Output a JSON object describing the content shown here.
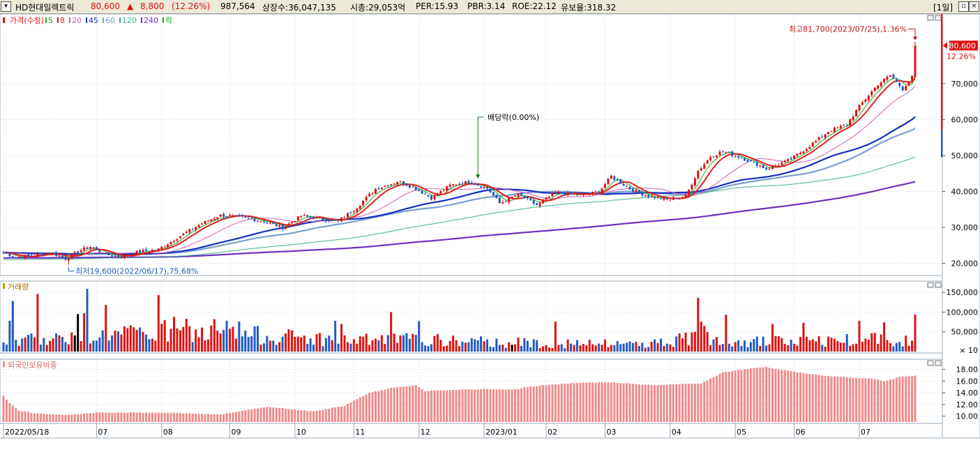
{
  "header": {
    "stock_name": "HD현대일렉트릭",
    "price": "80,600",
    "change_arrow": "▲",
    "change": "8,800",
    "change_pct": "(12.26%)",
    "volume": "987,564",
    "listed_shares": "상장수:36,047,135",
    "market_cap": "시총:29,053억",
    "per": "PER:15.93",
    "pbr": "PBR:3.14",
    "roe": "ROE:22.12",
    "reserve_ratio": "유보율:318.32",
    "period_button": "[1일]"
  },
  "colors": {
    "up": "#e01010",
    "down": "#1f5bc0",
    "ma5": "#22a022",
    "ma8": "#e02020",
    "ma20": "#d060b0",
    "ma45": "#1530c0",
    "ma60": "#7aa0d0",
    "ma120": "#40b090",
    "ma240": "#7030c0",
    "holding": "#f08a8a",
    "grid": "#c8d4e0"
  },
  "chart_data": [
    {
      "type": "candlestick",
      "panel": "price",
      "legend": [
        {
          "label": "가격(수정)",
          "color": "#e01010"
        },
        {
          "label": "5",
          "color": "#22a022"
        },
        {
          "label": "8",
          "color": "#e02020"
        },
        {
          "label": "20",
          "color": "#d060b0"
        },
        {
          "label": "45",
          "color": "#1530c0"
        },
        {
          "label": "60",
          "color": "#7aa0d0"
        },
        {
          "label": "120",
          "color": "#40b090"
        },
        {
          "label": "240",
          "color": "#7030c0"
        },
        {
          "label": "락",
          "color": "#22a022"
        }
      ],
      "ylim": [
        17000,
        89000
      ],
      "y_ticks": [
        "20,000",
        "30,000",
        "40,000",
        "50,000",
        "60,000",
        "70,000"
      ],
      "y_tick_values": [
        20000,
        30000,
        40000,
        50000,
        60000,
        70000
      ],
      "x_labels": [
        "2022/05/18",
        "07",
        "08",
        "09",
        "10",
        "11",
        "12",
        "2023/01",
        "02",
        "03",
        "04",
        "05",
        "06",
        "07"
      ],
      "x_label_index": [
        0,
        30,
        51,
        73,
        94,
        113,
        134,
        155,
        175,
        194,
        215,
        236,
        255,
        276
      ],
      "close_anchors": [
        [
          0,
          23000
        ],
        [
          4,
          21700
        ],
        [
          10,
          22200
        ],
        [
          15,
          23100
        ],
        [
          20,
          21300
        ],
        [
          25,
          23700
        ],
        [
          28,
          24600
        ],
        [
          33,
          22400
        ],
        [
          38,
          21900
        ],
        [
          44,
          23300
        ],
        [
          50,
          23900
        ],
        [
          56,
          27100
        ],
        [
          63,
          30700
        ],
        [
          70,
          33400
        ],
        [
          78,
          32700
        ],
        [
          84,
          31700
        ],
        [
          90,
          29900
        ],
        [
          96,
          33200
        ],
        [
          102,
          32400
        ],
        [
          108,
          31700
        ],
        [
          114,
          35700
        ],
        [
          120,
          40700
        ],
        [
          127,
          42800
        ],
        [
          132,
          41200
        ],
        [
          138,
          38200
        ],
        [
          144,
          41700
        ],
        [
          150,
          42700
        ],
        [
          156,
          40900
        ],
        [
          160,
          36700
        ],
        [
          166,
          39200
        ],
        [
          172,
          36200
        ],
        [
          178,
          39700
        ],
        [
          186,
          38900
        ],
        [
          192,
          39900
        ],
        [
          196,
          44200
        ],
        [
          202,
          40700
        ],
        [
          208,
          38700
        ],
        [
          214,
          37700
        ],
        [
          220,
          38700
        ],
        [
          224,
          45700
        ],
        [
          228,
          49700
        ],
        [
          232,
          51200
        ],
        [
          240,
          48700
        ],
        [
          246,
          46300
        ],
        [
          250,
          47500
        ],
        [
          254,
          49000
        ],
        [
          260,
          52700
        ],
        [
          266,
          56700
        ],
        [
          272,
          58700
        ],
        [
          276,
          63700
        ],
        [
          282,
          69800
        ],
        [
          286,
          72300
        ],
        [
          290,
          68500
        ],
        [
          293,
          71800
        ],
        [
          294,
          80600
        ]
      ],
      "volume_anchors": [
        [
          0,
          40
        ],
        [
          20,
          60
        ],
        [
          40,
          70
        ],
        [
          60,
          75
        ],
        [
          70,
          72
        ],
        [
          90,
          62
        ],
        [
          110,
          45
        ],
        [
          130,
          50
        ],
        [
          150,
          40
        ],
        [
          170,
          35
        ],
        [
          190,
          30
        ],
        [
          210,
          35
        ],
        [
          226,
          60
        ],
        [
          240,
          42
        ],
        [
          260,
          40
        ],
        [
          280,
          55
        ],
        [
          294,
          50
        ]
      ],
      "volume_spikes": [
        [
          2,
          78
        ],
        [
          3,
          128
        ],
        [
          11,
          146
        ],
        [
          24,
          95
        ],
        [
          26,
          97
        ],
        [
          27,
          159
        ],
        [
          33,
          118
        ],
        [
          50,
          143
        ],
        [
          52,
          80
        ],
        [
          55,
          88
        ],
        [
          59,
          83
        ],
        [
          68,
          82
        ],
        [
          72,
          78
        ],
        [
          76,
          76
        ],
        [
          107,
          78
        ],
        [
          109,
          70
        ],
        [
          125,
          100
        ],
        [
          134,
          77
        ],
        [
          178,
          76
        ],
        [
          224,
          136
        ],
        [
          225,
          76
        ],
        [
          226,
          65
        ],
        [
          233,
          93
        ],
        [
          248,
          70
        ],
        [
          258,
          73
        ],
        [
          276,
          78
        ],
        [
          284,
          74
        ],
        [
          294,
          94
        ]
      ],
      "black_volume_idx": [
        23,
        24,
        164
      ],
      "ma_settings": [
        5,
        8,
        20,
        45,
        60,
        120,
        240
      ],
      "ma_preload": {
        "120": 21000,
        "240": 21500
      },
      "annotations": {
        "high": "최고81,700(2023/07/25),1.36%",
        "low": "최저19,600(2022/06/17),75.68%",
        "dividend": "배당락(0.00%)",
        "price_tag": "80,600",
        "pct_tag": "12.26%"
      },
      "high_point": {
        "index": 294,
        "value": 81700
      },
      "low_point": {
        "index": 21,
        "value": 19600
      },
      "dividend_point": {
        "index": 153,
        "value": 43000
      }
    },
    {
      "type": "bar",
      "panel": "volume",
      "title": "거래량",
      "ylim": [
        0,
        175
      ],
      "y_ticks": [
        "150,000",
        "100,000",
        "50,000"
      ],
      "y_tick_values": [
        150,
        100,
        50
      ],
      "unit_label": "× 10"
    },
    {
      "type": "bar",
      "panel": "foreign_holding",
      "title": "외국인보유비중",
      "ylim": [
        9,
        19.5
      ],
      "y_ticks": [
        "18.00",
        "16.00",
        "14.00",
        "12.00",
        "10.00"
      ],
      "y_tick_values": [
        18,
        16,
        14,
        12,
        10
      ],
      "holding_anchors": [
        [
          0,
          13.5
        ],
        [
          2,
          12.2
        ],
        [
          5,
          11
        ],
        [
          10,
          10.5
        ],
        [
          20,
          10.2
        ],
        [
          30,
          10.6
        ],
        [
          50,
          10.6
        ],
        [
          70,
          10.3
        ],
        [
          85,
          11.6
        ],
        [
          100,
          10.8
        ],
        [
          110,
          11.8
        ],
        [
          118,
          14.0
        ],
        [
          125,
          14.8
        ],
        [
          133,
          15.3
        ],
        [
          136,
          14.3
        ],
        [
          150,
          14.6
        ],
        [
          165,
          14.6
        ],
        [
          170,
          15.1
        ],
        [
          185,
          15.7
        ],
        [
          195,
          15.8
        ],
        [
          210,
          15.3
        ],
        [
          225,
          15.6
        ],
        [
          232,
          17.5
        ],
        [
          240,
          18.1
        ],
        [
          246,
          18.4
        ],
        [
          255,
          17.6
        ],
        [
          265,
          16.9
        ],
        [
          280,
          16.4
        ],
        [
          284,
          16.0
        ],
        [
          290,
          16.8
        ],
        [
          294,
          16.9
        ]
      ]
    }
  ]
}
